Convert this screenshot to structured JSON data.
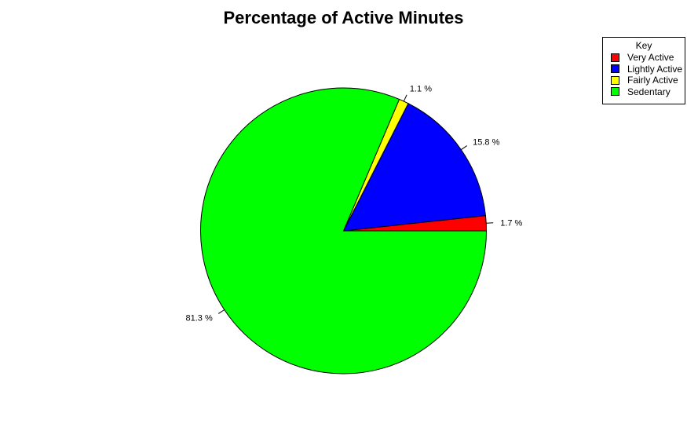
{
  "chart_data": {
    "type": "pie",
    "title": "Percentage of Active Minutes",
    "legend": {
      "title": "Key",
      "placement": "top-right",
      "entries": [
        "Very Active",
        "Lightly Active",
        "Fairly Active",
        "Sedentary"
      ]
    },
    "slices": [
      {
        "name": "Very Active",
        "value": 1.7,
        "label": "1.7 %",
        "color": "#FF0000"
      },
      {
        "name": "Lightly Active",
        "value": 15.8,
        "label": "15.8 %",
        "color": "#0000FF"
      },
      {
        "name": "Fairly Active",
        "value": 1.1,
        "label": "1.1 %",
        "color": "#FFFF00"
      },
      {
        "name": "Sedentary",
        "value": 81.3,
        "label": "81.3 %",
        "color": "#00FF00"
      }
    ]
  }
}
